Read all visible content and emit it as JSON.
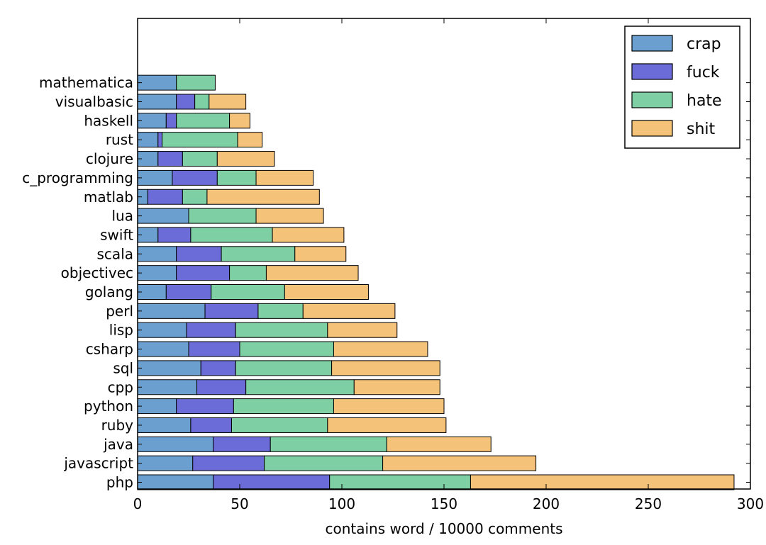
{
  "chart_data": {
    "type": "bar",
    "orientation": "horizontal",
    "stacked": true,
    "xlabel": "contains word / 10000 comments",
    "xlim": [
      0,
      300
    ],
    "xticks": [
      0,
      50,
      100,
      150,
      200,
      250,
      300
    ],
    "grid": false,
    "legend_position": "top-right",
    "categories": [
      "php",
      "javascript",
      "java",
      "ruby",
      "python",
      "cpp",
      "sql",
      "csharp",
      "lisp",
      "perl",
      "golang",
      "objectivec",
      "scala",
      "swift",
      "lua",
      "matlab",
      "c_programming",
      "clojure",
      "rust",
      "haskell",
      "visualbasic",
      "mathematica"
    ],
    "series": [
      {
        "name": "crap",
        "color": "#6a9fd0",
        "values": [
          37,
          27,
          37,
          26,
          19,
          29,
          31,
          25,
          24,
          33,
          14,
          19,
          19,
          10,
          25,
          5,
          17,
          10,
          10,
          14,
          19,
          19
        ]
      },
      {
        "name": "fuck",
        "color": "#6b6cd8",
        "values": [
          57,
          35,
          28,
          20,
          28,
          24,
          17,
          25,
          24,
          26,
          22,
          26,
          22,
          16,
          0,
          17,
          22,
          12,
          2,
          5,
          9,
          0
        ]
      },
      {
        "name": "hate",
        "color": "#7ed0a4",
        "values": [
          69,
          58,
          57,
          47,
          49,
          53,
          47,
          46,
          45,
          22,
          36,
          18,
          36,
          40,
          33,
          12,
          19,
          17,
          37,
          26,
          7,
          19
        ]
      },
      {
        "name": "shit",
        "color": "#f5c27a",
        "values": [
          129,
          75,
          51,
          58,
          54,
          42,
          53,
          46,
          34,
          45,
          41,
          45,
          25,
          35,
          33,
          55,
          28,
          28,
          12,
          10,
          18,
          0
        ]
      }
    ]
  }
}
